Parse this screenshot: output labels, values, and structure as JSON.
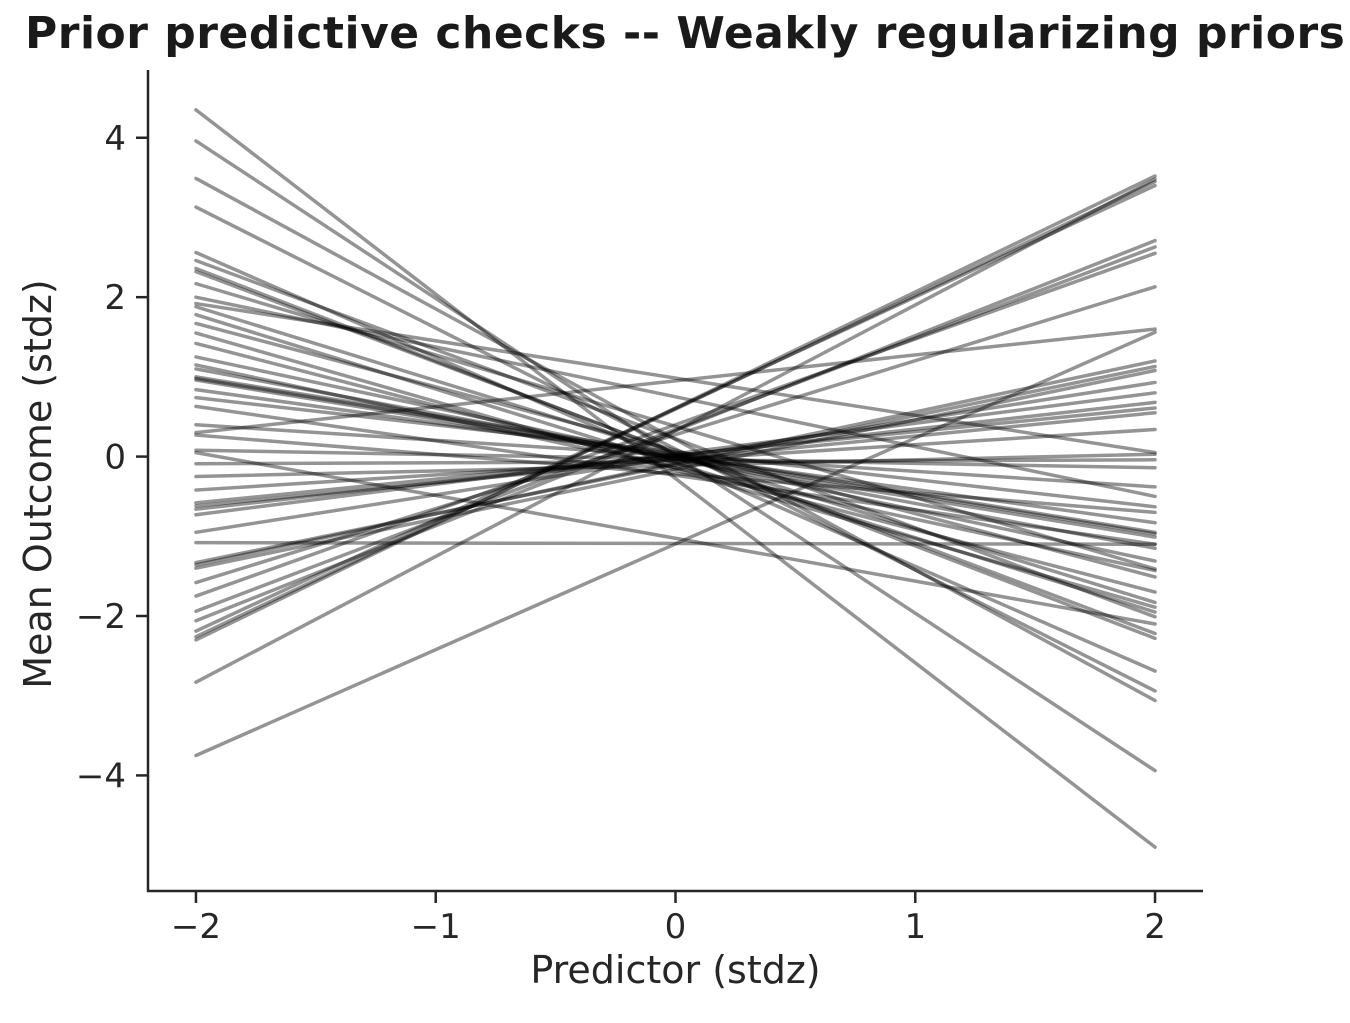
{
  "chart_data": {
    "type": "line",
    "title": "Prior predictive checks -- Weakly regularizing priors",
    "xlabel": "Predictor (stdz)",
    "ylabel": "Mean Outcome (stdz)",
    "xlim": [
      -2.2,
      2.2
    ],
    "ylim": [
      -5.45,
      4.85
    ],
    "grid": false,
    "legend": "none",
    "x_ticks": [
      {
        "value": -2,
        "label": "−2"
      },
      {
        "value": -1,
        "label": "−1"
      },
      {
        "value": 0,
        "label": "0"
      },
      {
        "value": 1,
        "label": "1"
      },
      {
        "value": 2,
        "label": "2"
      }
    ],
    "y_ticks": [
      {
        "value": 4,
        "label": "4"
      },
      {
        "value": 2,
        "label": "2"
      },
      {
        "value": 0,
        "label": "0"
      },
      {
        "value": -2,
        "label": "−2"
      },
      {
        "value": -4,
        "label": "−4"
      }
    ],
    "x_domain": [
      -2,
      2
    ],
    "lines_note": "Each entry is [y at x=-2, y at x=+2] for one prior draw line",
    "lines": [
      [
        4.35,
        -4.9
      ],
      [
        3.96,
        -3.94
      ],
      [
        3.49,
        -3.06
      ],
      [
        3.13,
        -2.94
      ],
      [
        2.56,
        -2.69
      ],
      [
        2.46,
        -2.01
      ],
      [
        2.36,
        -2.28
      ],
      [
        2.32,
        -2.22
      ],
      [
        2.17,
        -1.41
      ],
      [
        2.0,
        -0.5
      ],
      [
        1.92,
        0.05
      ],
      [
        1.88,
        -1.83
      ],
      [
        1.78,
        -1.95
      ],
      [
        1.67,
        -1.51
      ],
      [
        1.55,
        -1.89
      ],
      [
        1.42,
        -1.7
      ],
      [
        1.25,
        -1.31
      ],
      [
        1.15,
        -1.43
      ],
      [
        1.1,
        -1.15
      ],
      [
        1.0,
        -0.95
      ],
      [
        0.98,
        -0.97
      ],
      [
        0.96,
        -1.01
      ],
      [
        0.84,
        -0.83
      ],
      [
        0.74,
        -0.63
      ],
      [
        0.63,
        -1.1
      ],
      [
        0.4,
        -0.38
      ],
      [
        0.3,
        1.6
      ],
      [
        0.27,
        -0.7
      ],
      [
        0.08,
        -0.14
      ],
      [
        0.05,
        -2.1
      ],
      [
        -0.09,
        -0.04
      ],
      [
        -0.25,
        0.03
      ],
      [
        -0.42,
        0.34
      ],
      [
        -0.58,
        0.61
      ],
      [
        -0.62,
        0.55
      ],
      [
        -0.66,
        0.68
      ],
      [
        -0.73,
        0.8
      ],
      [
        -0.95,
        0.93
      ],
      [
        -1.08,
        -1.1
      ],
      [
        -1.33,
        1.13
      ],
      [
        -1.36,
        1.2
      ],
      [
        -1.4,
        1.08
      ],
      [
        -1.58,
        2.13
      ],
      [
        -1.75,
        2.55
      ],
      [
        -1.94,
        2.63
      ],
      [
        -2.06,
        2.71
      ],
      [
        -2.19,
        3.4
      ],
      [
        -2.26,
        3.45
      ],
      [
        -2.3,
        3.52
      ],
      [
        -2.83,
        3.48
      ],
      [
        -3.75,
        1.56
      ]
    ],
    "style": {
      "line_color": "#000000",
      "line_alpha": 0.42,
      "line_width": 3.5,
      "axis_color": "#262626",
      "text_color": "#262626",
      "background": "#ffffff"
    }
  }
}
